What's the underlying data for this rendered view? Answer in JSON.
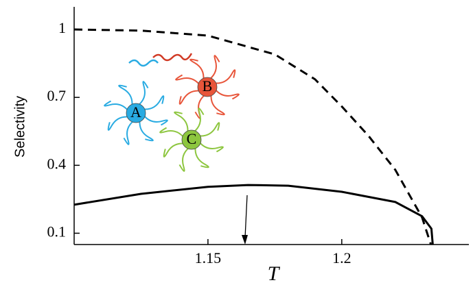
{
  "chart_data": {
    "type": "line",
    "ylabel": "Selectivity",
    "xlabel": "T",
    "xlim": [
      1.1,
      1.2475
    ],
    "xticks": [
      1.15,
      1.2
    ],
    "ylim": [
      0.05,
      1.1
    ],
    "yticks": [
      0.1,
      0.4,
      0.7,
      1
    ],
    "series": [
      {
        "color": "#000000",
        "style": "dashed",
        "x": [
          1.1,
          1.125,
          1.15,
          1.175,
          1.19,
          1.2,
          1.21,
          1.22,
          1.23,
          1.2333
        ],
        "values": [
          1.0,
          0.995,
          0.973,
          0.89,
          0.78,
          0.66,
          0.53,
          0.38,
          0.17,
          0.05
        ]
      },
      {
        "color": "#000000",
        "style": "solid",
        "x": [
          1.1,
          1.125,
          1.15,
          1.165,
          1.18,
          1.2,
          1.22,
          1.23,
          1.2335,
          1.234
        ],
        "values": [
          0.226,
          0.274,
          0.305,
          0.313,
          0.31,
          0.283,
          0.238,
          0.175,
          0.12,
          0.05
        ]
      }
    ],
    "annotations": [
      {
        "text": "A",
        "color": "#29abe2"
      },
      {
        "text": "B",
        "color": "#e8553a"
      },
      {
        "text": "C",
        "color": "#8dc63f"
      }
    ]
  }
}
